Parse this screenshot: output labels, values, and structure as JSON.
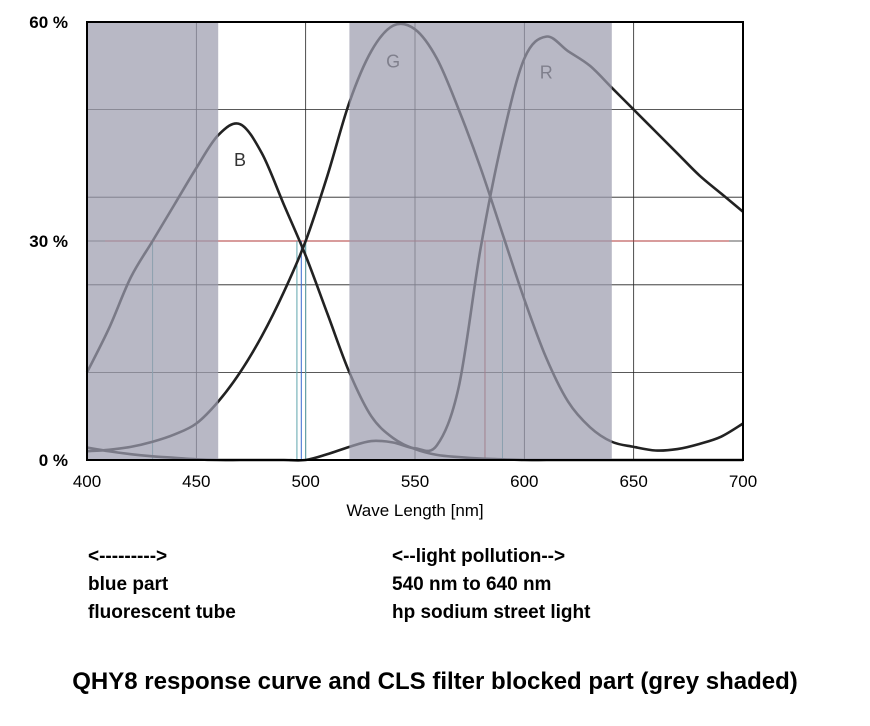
{
  "chart_data": {
    "type": "line",
    "x": [
      400,
      410,
      420,
      430,
      440,
      450,
      460,
      470,
      480,
      490,
      500,
      510,
      520,
      530,
      540,
      550,
      560,
      570,
      580,
      590,
      600,
      610,
      620,
      630,
      640,
      650,
      660,
      670,
      680,
      690,
      700
    ],
    "series": [
      {
        "name": "B",
        "color": "#222222",
        "values": [
          12,
          18,
          25,
          30,
          35,
          40,
          44.5,
          46,
          42,
          35,
          28,
          20,
          12,
          6,
          3,
          1.5,
          0.7,
          0.4,
          0.2,
          0.1,
          0,
          0,
          0,
          0,
          0,
          0,
          0,
          0,
          0,
          0,
          0
        ]
      },
      {
        "name": "G",
        "color": "#222222",
        "values": [
          1.2,
          1.4,
          1.8,
          2.5,
          3.5,
          5,
          8,
          12,
          17,
          23,
          30,
          39,
          49,
          56,
          59.5,
          59,
          55,
          48,
          40,
          31,
          22,
          14,
          8,
          4.5,
          2.5,
          1.8,
          1.3,
          1.5,
          2.2,
          3.2,
          5
        ]
      },
      {
        "name": "R",
        "color": "#222222",
        "values": [
          1.7,
          1.2,
          0.8,
          0.5,
          0.3,
          0.1,
          0,
          0,
          0,
          0,
          0,
          0.8,
          1.8,
          2.6,
          2.4,
          1.6,
          2,
          10,
          29,
          44,
          55,
          58,
          56,
          54,
          51,
          48,
          45,
          42,
          39,
          36.5,
          34
        ]
      }
    ],
    "xlim": [
      400,
      700
    ],
    "xticks": [
      400,
      450,
      500,
      550,
      600,
      650,
      700
    ],
    "ylim": [
      0,
      60
    ],
    "yticks": [
      {
        "value": 0,
        "label": "0 %"
      },
      {
        "value": 30,
        "label": "30 %"
      },
      {
        "value": 60,
        "label": "60 %"
      }
    ],
    "ygrid": [
      12,
      24,
      36,
      48
    ],
    "grid": true,
    "xlabel": "Wave Length [nm]",
    "shaded": [
      [
        400,
        460
      ],
      [
        520,
        640
      ]
    ],
    "shade_color": "#9c9cae",
    "hline": {
      "y": 30,
      "color": "#b03a3a"
    },
    "markers": [
      {
        "x": 430,
        "color": "#5fa5ad"
      },
      {
        "x": 496,
        "color": "#5fa5ad"
      },
      {
        "x": 498,
        "color": "#3a6ad0"
      },
      {
        "x": 500,
        "color": "#5fa5ad"
      },
      {
        "x": 582,
        "color": "#b03a3a"
      },
      {
        "x": 590,
        "color": "#5fa5ad"
      }
    ],
    "notes": [
      [
        "<--------->",
        "blue part",
        "fluorescent tube"
      ],
      [
        "<--light pollution-->",
        "540 nm to 640 nm",
        "hp sodium street light"
      ]
    ],
    "title": "QHY8 response curve and CLS filter blocked part (grey shaded)"
  }
}
